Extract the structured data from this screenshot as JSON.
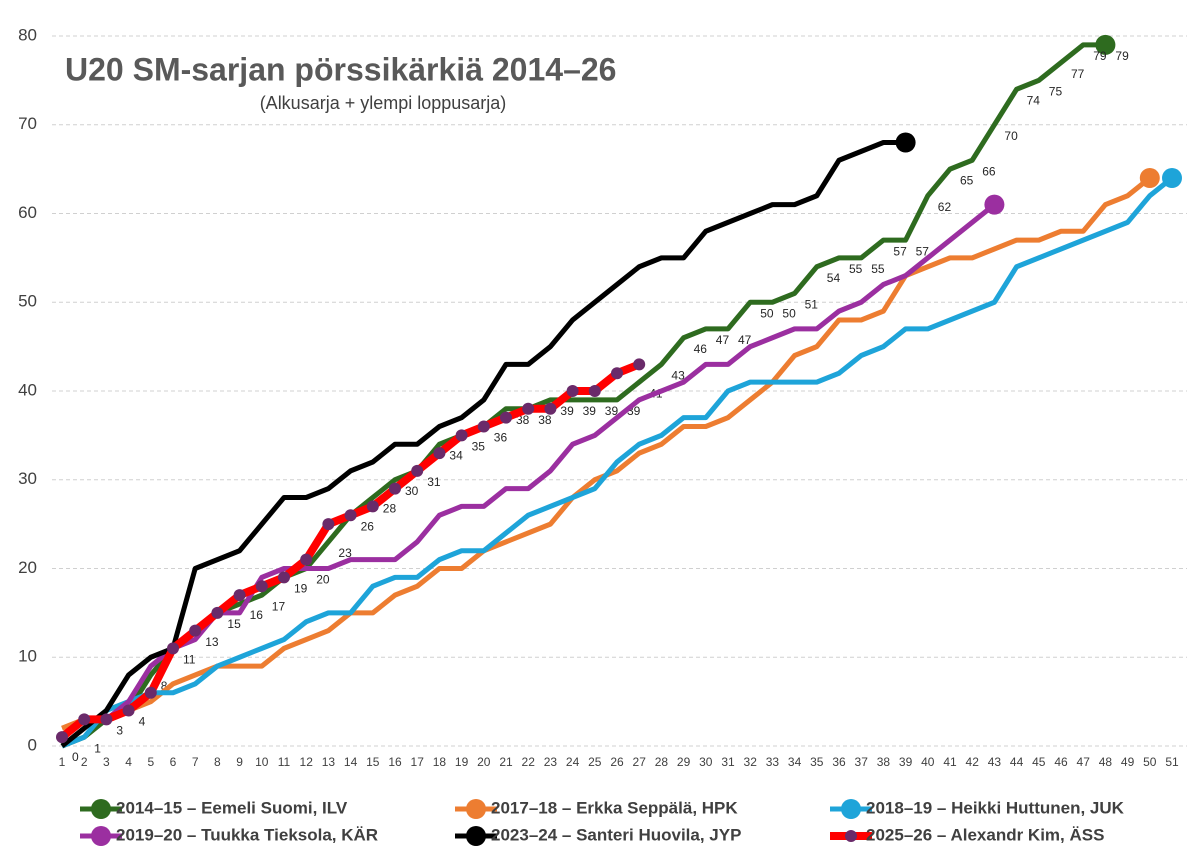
{
  "chart_data": {
    "type": "line",
    "title": "U20 SM-sarjan pörssikärkiä 2014–26",
    "subtitle": "(Alkusarja + ylempi loppusarja)",
    "categories": [
      1,
      2,
      3,
      4,
      5,
      6,
      7,
      8,
      9,
      10,
      11,
      12,
      13,
      14,
      15,
      16,
      17,
      18,
      19,
      20,
      21,
      22,
      23,
      24,
      25,
      26,
      27,
      28,
      29,
      30,
      31,
      32,
      33,
      34,
      35,
      36,
      37,
      38,
      39,
      40,
      41,
      42,
      43,
      44,
      45,
      46,
      47,
      48,
      49,
      50,
      51
    ],
    "ylim": [
      0,
      80
    ],
    "yticks": [
      0,
      10,
      20,
      30,
      40,
      50,
      60,
      70,
      80
    ],
    "grid": true,
    "legend": "bottom",
    "series": [
      {
        "name": "2014–15 – Eemeli Suomi, ILV",
        "color": "#2e6b1f",
        "marker": "end",
        "data_labels": true,
        "values": [
          0,
          1,
          3,
          4,
          8,
          11,
          13,
          15,
          16,
          17,
          19,
          20,
          23,
          26,
          28,
          30,
          31,
          34,
          35,
          36,
          38,
          38,
          39,
          39,
          39,
          39,
          41,
          43,
          46,
          47,
          47,
          50,
          50,
          51,
          54,
          55,
          55,
          57,
          57,
          62,
          65,
          66,
          70,
          74,
          75,
          77,
          79,
          79,
          null,
          null,
          null
        ]
      },
      {
        "name": "2017–18 – Erkka Seppälä, HPK",
        "color": "#ed7d31",
        "marker": "end",
        "values": [
          2,
          3,
          3,
          4,
          5,
          7,
          8,
          9,
          9,
          9,
          11,
          12,
          13,
          15,
          15,
          17,
          18,
          20,
          20,
          22,
          23,
          24,
          25,
          28,
          30,
          31,
          33,
          34,
          36,
          36,
          37,
          39,
          41,
          44,
          45,
          48,
          48,
          49,
          53,
          54,
          55,
          55,
          56,
          57,
          57,
          58,
          58,
          61,
          62,
          64,
          null
        ]
      },
      {
        "name": "2018–19 – Heikki Huttunen, JUK",
        "color": "#1ea4d9",
        "marker": "end",
        "values": [
          0,
          1,
          4,
          5,
          6,
          6,
          7,
          9,
          10,
          11,
          12,
          14,
          15,
          15,
          18,
          19,
          19,
          21,
          22,
          22,
          24,
          26,
          27,
          28,
          29,
          32,
          34,
          35,
          37,
          37,
          40,
          41,
          41,
          41,
          41,
          42,
          44,
          45,
          47,
          47,
          48,
          49,
          50,
          54,
          55,
          56,
          57,
          58,
          59,
          62,
          64
        ]
      },
      {
        "name": "2019–20 – Tuukka Tieksola, KÄR",
        "color": "#9b2fa0",
        "marker": "end",
        "values": [
          1,
          3,
          3,
          5,
          9,
          11,
          12,
          15,
          15,
          19,
          20,
          20,
          20,
          21,
          21,
          21,
          23,
          26,
          27,
          27,
          29,
          29,
          31,
          34,
          35,
          37,
          39,
          40,
          41,
          43,
          43,
          45,
          46,
          47,
          47,
          49,
          50,
          52,
          53,
          55,
          57,
          59,
          61,
          null,
          null,
          null,
          null,
          null,
          null,
          null,
          null
        ]
      },
      {
        "name": "2023–24 – Santeri Huovila, JYP",
        "color": "#000000",
        "marker": "end",
        "values": [
          0,
          2,
          4,
          8,
          10,
          11,
          20,
          21,
          22,
          25,
          28,
          28,
          29,
          31,
          32,
          34,
          34,
          36,
          37,
          39,
          43,
          43,
          45,
          48,
          50,
          52,
          54,
          55,
          55,
          58,
          59,
          60,
          61,
          61,
          62,
          66,
          67,
          68,
          68,
          null,
          null,
          null,
          null,
          null,
          null,
          null,
          null,
          null,
          null,
          null,
          null
        ]
      },
      {
        "name": "2025–26 – Alexandr Kim, ÄSS",
        "color": "#ff0000",
        "marker": "all",
        "marker_color": "#6a2a6a",
        "values": [
          1,
          3,
          3,
          4,
          6,
          11,
          13,
          15,
          17,
          18,
          19,
          21,
          25,
          26,
          27,
          29,
          31,
          33,
          35,
          36,
          37,
          38,
          38,
          40,
          40,
          42,
          43,
          null,
          null,
          null,
          null,
          null,
          null,
          null,
          null,
          null,
          null,
          null,
          null,
          null,
          null,
          null,
          null,
          null,
          null,
          null,
          null,
          null,
          null,
          null,
          null
        ]
      }
    ]
  }
}
